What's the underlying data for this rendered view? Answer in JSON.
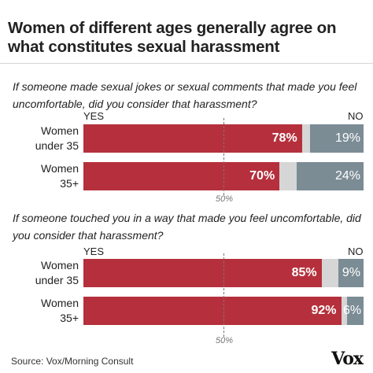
{
  "title": "Women of different ages generally agree on what constitutes sexual harassment",
  "source": "Source: Vox/Morning Consult",
  "logo": "Vox",
  "colors": {
    "yes": "#b5303c",
    "neutral": "#d6d6d6",
    "no": "#7b8c95"
  },
  "chart_data": [
    {
      "type": "bar",
      "stacked": true,
      "orientation": "horizontal",
      "question": "If someone made sexual jokes or sexual comments that made you feel uncomfortable, did you consider that harassment?",
      "yes_label": "YES",
      "no_label": "NO",
      "reference_label": "50%",
      "reference_value": 50,
      "categories": [
        "Women under 35",
        "Women 35+"
      ],
      "category_lines": [
        [
          "Women",
          "under 35"
        ],
        [
          "Women",
          "35+"
        ]
      ],
      "series": [
        {
          "name": "YES",
          "values": [
            78,
            70
          ],
          "labels": [
            "78%",
            "70%"
          ]
        },
        {
          "name": "NO",
          "values": [
            19,
            24
          ],
          "labels": [
            "19%",
            "24%"
          ]
        }
      ]
    },
    {
      "type": "bar",
      "stacked": true,
      "orientation": "horizontal",
      "question": "If someone touched you in a way that made you feel uncomfortable, did you consider that harassment?",
      "yes_label": "YES",
      "no_label": "NO",
      "reference_label": "50%",
      "reference_value": 50,
      "categories": [
        "Women under 35",
        "Women 35+"
      ],
      "category_lines": [
        [
          "Women",
          "under 35"
        ],
        [
          "Women",
          "35+"
        ]
      ],
      "series": [
        {
          "name": "YES",
          "values": [
            85,
            92
          ],
          "labels": [
            "85%",
            "92%"
          ]
        },
        {
          "name": "NO",
          "values": [
            9,
            6
          ],
          "labels": [
            "9%",
            "6%"
          ]
        }
      ]
    }
  ]
}
